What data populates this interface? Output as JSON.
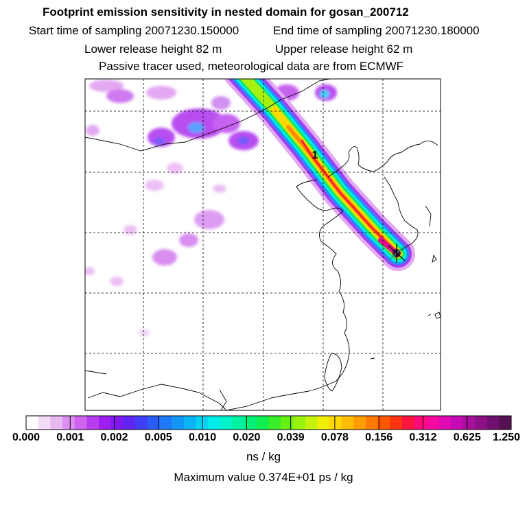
{
  "header": {
    "title": "Footprint emission sensitivity in nested domain for gosan_200712",
    "start_label": "Start time of sampling 20071230.150000",
    "end_label": "End time of sampling 20071230.180000",
    "lower_label": "Lower release height   82 m",
    "upper_label": "Upper release height   62 m",
    "tracer_label": "Passive tracer used, meteorological data are from ECMWF"
  },
  "chart_data": {
    "type": "heatmap",
    "title": "Footprint emission sensitivity in nested domain for gosan_200712",
    "start_time": "20071230.150000",
    "end_time": "20071230.180000",
    "lower_release_height_m": 82,
    "upper_release_height_m": 62,
    "plume_label": "1",
    "colorbar": {
      "unit": "ns / kg",
      "tick_labels": [
        "0.000",
        "0.001",
        "0.002",
        "0.005",
        "0.010",
        "0.020",
        "0.039",
        "0.078",
        "0.156",
        "0.312",
        "0.625",
        "1.250"
      ],
      "colors": [
        "#ffffff",
        "#f3dcf7",
        "#e8b8f0",
        "#dd8ef0",
        "#cf65ee",
        "#b83df0",
        "#9d1ef0",
        "#8018f2",
        "#6024f5",
        "#3f3ef8",
        "#2a5cf8",
        "#1e78f8",
        "#1496f6",
        "#0ab4f4",
        "#04d2f2",
        "#00ecea",
        "#00f2c8",
        "#00f2a0",
        "#00f078",
        "#10ee50",
        "#3aee2a",
        "#68f014",
        "#98f20a",
        "#c4f208",
        "#f0ee00",
        "#ffd800",
        "#ffbc00",
        "#ff9c00",
        "#ff7a00",
        "#ff5800",
        "#ff3410",
        "#ff1440",
        "#ff0a78",
        "#f80aa0",
        "#e00ab4",
        "#c40ab4",
        "#a8109c",
        "#8c1086",
        "#701070",
        "#541050"
      ]
    },
    "maximum_value_label": "Maximum value  0.374E+01 ps / kg"
  }
}
